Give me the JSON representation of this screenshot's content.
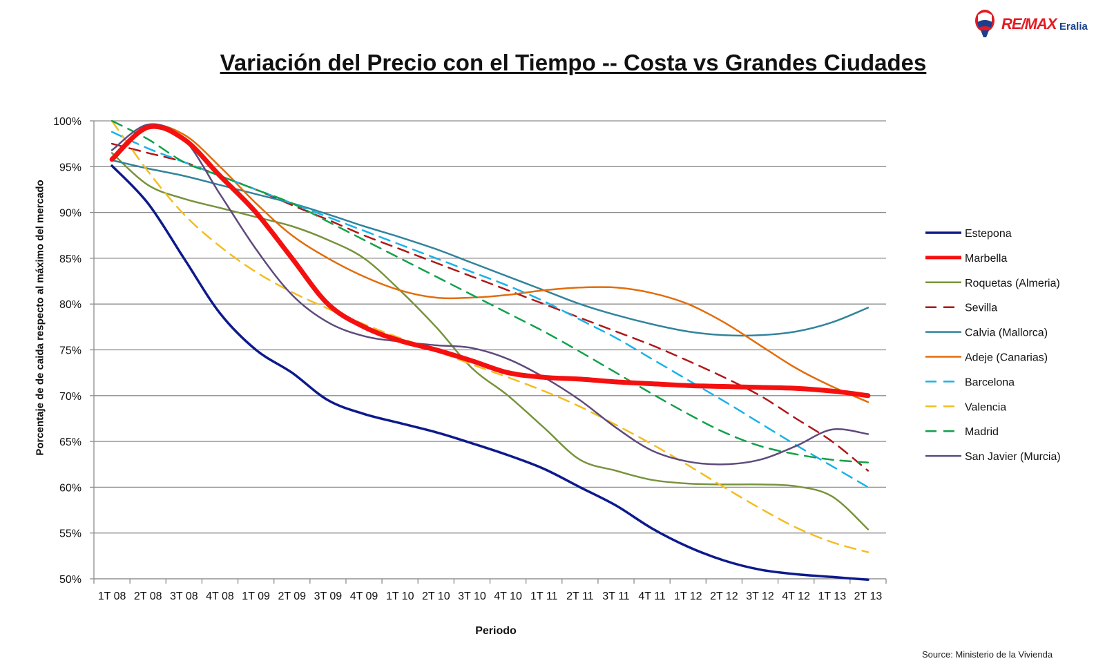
{
  "brand": {
    "name": "RE/MAX",
    "sub": "Eralia",
    "colors": {
      "red": "#e31b23",
      "blue": "#1b3f8f"
    }
  },
  "source": "Source: Ministerio de la Vivienda",
  "chart_data": {
    "type": "line",
    "title": "Variación del Precio con el Tiempo -- Costa vs Grandes Ciudades",
    "xlabel": "Periodo",
    "ylabel": "Porcentaje de de caida respecto al máximo del mercado",
    "ylim": [
      50,
      100
    ],
    "y_ticks": [
      "50%",
      "55%",
      "60%",
      "65%",
      "70%",
      "75%",
      "80%",
      "85%",
      "90%",
      "95%",
      "100%"
    ],
    "grid": true,
    "legend_position": "right",
    "categories": [
      "1T 08",
      "2T 08",
      "3T 08",
      "4T 08",
      "1T 09",
      "2T 09",
      "3T 09",
      "4T 09",
      "1T 10",
      "2T 10",
      "3T 10",
      "4T 10",
      "1T 11",
      "2T 11",
      "3T 11",
      "4T 11",
      "1T 12",
      "2T 12",
      "3T 12",
      "4T 12",
      "1T 13",
      "2T 13"
    ],
    "series": [
      {
        "name": "Estepona",
        "color": "#0d1a8c",
        "dash": false,
        "width": 3.5,
        "values": [
          95.1,
          91.0,
          85.0,
          79.0,
          75.0,
          72.5,
          69.5,
          68.0,
          67.0,
          66.0,
          64.8,
          63.5,
          62.0,
          60.0,
          58.0,
          55.5,
          53.5,
          52.0,
          51.0,
          50.5,
          50.2,
          49.9
        ]
      },
      {
        "name": "Marbella",
        "color": "#f51010",
        "dash": false,
        "width": 7,
        "values": [
          95.8,
          99.3,
          98.0,
          94.0,
          90.0,
          85.0,
          80.0,
          77.5,
          76.0,
          75.0,
          73.8,
          72.5,
          72.0,
          71.8,
          71.5,
          71.3,
          71.1,
          71.0,
          70.9,
          70.8,
          70.5,
          70.0
        ]
      },
      {
        "name": "Roquetas (Almeria)",
        "color": "#77933c",
        "dash": false,
        "width": 2.5,
        "values": [
          96.5,
          93.0,
          91.5,
          90.5,
          89.5,
          88.5,
          87.0,
          85.0,
          81.5,
          77.5,
          73.0,
          70.0,
          66.5,
          63.0,
          61.8,
          60.8,
          60.4,
          60.3,
          60.3,
          60.1,
          59.0,
          55.4
        ]
      },
      {
        "name": "Sevilla",
        "color": "#b01717",
        "dash": true,
        "width": 2.5,
        "values": [
          97.5,
          96.5,
          95.5,
          94.0,
          92.5,
          90.8,
          89.2,
          87.5,
          86.0,
          84.5,
          83.0,
          81.5,
          80.0,
          78.5,
          77.0,
          75.5,
          73.8,
          72.0,
          70.0,
          67.5,
          65.0,
          61.8
        ]
      },
      {
        "name": "Calvia (Mallorca)",
        "color": "#31849b",
        "dash": false,
        "width": 2.5,
        "values": [
          95.7,
          94.8,
          94.0,
          93.0,
          92.0,
          91.0,
          89.8,
          88.5,
          87.3,
          86.0,
          84.5,
          83.0,
          81.5,
          80.0,
          78.8,
          77.8,
          77.0,
          76.6,
          76.6,
          77.0,
          78.0,
          79.6
        ]
      },
      {
        "name": "Adeje (Canarias)",
        "color": "#e36c09",
        "dash": false,
        "width": 2.5,
        "values": [
          96.0,
          99.4,
          98.5,
          95.0,
          91.0,
          87.5,
          85.0,
          83.0,
          81.5,
          80.7,
          80.7,
          81.0,
          81.5,
          81.8,
          81.8,
          81.2,
          80.0,
          78.0,
          75.5,
          73.0,
          71.0,
          69.3
        ]
      },
      {
        "name": "Barcelona",
        "color": "#1ab2e8",
        "dash": true,
        "width": 2.5,
        "values": [
          98.8,
          97.0,
          95.5,
          94.0,
          92.5,
          91.0,
          89.5,
          88.0,
          86.5,
          85.0,
          83.5,
          82.0,
          80.3,
          78.3,
          76.3,
          74.0,
          71.7,
          69.4,
          67.0,
          64.6,
          62.3,
          60.0
        ]
      },
      {
        "name": "Valencia",
        "color": "#f3bd20",
        "dash": true,
        "width": 2.5,
        "values": [
          100.0,
          94.5,
          89.8,
          86.3,
          83.5,
          81.3,
          79.5,
          77.8,
          76.3,
          74.9,
          73.4,
          72.0,
          70.5,
          68.8,
          66.8,
          64.7,
          62.4,
          60.0,
          57.7,
          55.6,
          54.0,
          52.9
        ]
      },
      {
        "name": "Madrid",
        "color": "#11a14a",
        "dash": true,
        "width": 2.5,
        "values": [
          100.0,
          98.0,
          95.5,
          94.0,
          92.5,
          91.0,
          89.0,
          87.0,
          85.0,
          83.0,
          81.0,
          79.0,
          77.0,
          74.8,
          72.5,
          70.2,
          68.0,
          66.0,
          64.5,
          63.6,
          63.0,
          62.7
        ]
      },
      {
        "name": "San Javier (Murcia)",
        "color": "#5f4a7c",
        "dash": false,
        "width": 2.5,
        "values": [
          96.8,
          99.6,
          98.0,
          92.0,
          86.0,
          81.0,
          78.0,
          76.5,
          75.9,
          75.5,
          75.2,
          74.0,
          72.0,
          69.5,
          66.5,
          64.0,
          62.8,
          62.5,
          63.0,
          64.5,
          66.3,
          65.8
        ]
      }
    ]
  }
}
